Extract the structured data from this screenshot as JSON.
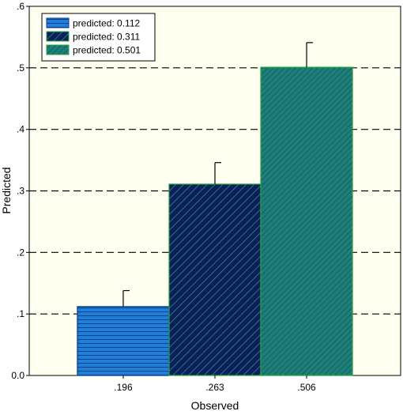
{
  "chart_data": {
    "type": "bar",
    "xlabel": "Observed",
    "ylabel": "Predicted",
    "categories": [
      ".196",
      ".263",
      ".506"
    ],
    "ylim": [
      0,
      0.6
    ],
    "yticks": [
      0.0,
      0.1,
      0.2,
      0.3,
      0.4,
      0.5,
      0.6
    ],
    "ytick_labels": [
      "0.0",
      ".1",
      ".2",
      ".3",
      ".4",
      ".5",
      ".6"
    ],
    "grid": "dashed horizontal lines at y ticks",
    "legend_position": "top-left",
    "series": [
      {
        "name": "predicted: 0.112",
        "value": 0.112,
        "error_upper": 0.138,
        "color": "#1f7fd9",
        "pattern": "horizontal"
      },
      {
        "name": "predicted: 0.311",
        "value": 0.311,
        "error_upper": 0.346,
        "color": "#0c1f5c",
        "pattern": "diagonal-down"
      },
      {
        "name": "predicted: 0.501",
        "value": 0.501,
        "error_upper": 0.541,
        "color": "#1e7f7a",
        "pattern": "diagonal-up"
      }
    ],
    "plot_background": "#fffff0"
  }
}
